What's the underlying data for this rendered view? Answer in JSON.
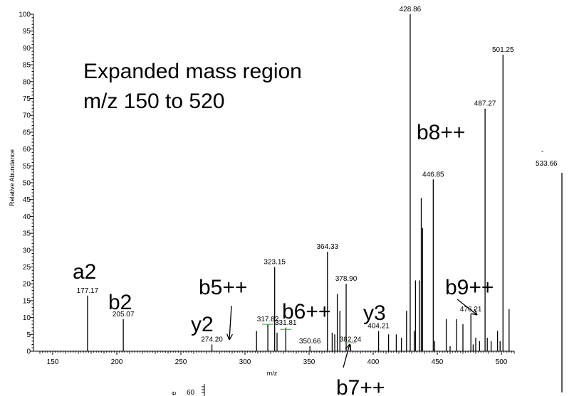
{
  "chart_data": {
    "type": "bar",
    "title": [
      "Expanded mass region",
      "m/z 150 to 520"
    ],
    "xlabel": "m/z",
    "ylabel": "Relative Abundance",
    "xlim": [
      135,
      510
    ],
    "ylim": [
      0,
      100
    ],
    "x_ticks": [
      150,
      200,
      250,
      300,
      350,
      400,
      450,
      500
    ],
    "y_ticks": [
      0,
      5,
      10,
      15,
      20,
      25,
      30,
      35,
      40,
      45,
      50,
      55,
      60,
      65,
      70,
      75,
      80,
      85,
      90,
      95,
      100
    ],
    "peaks": [
      {
        "mz": 177.17,
        "intensity": 16.5,
        "label": "177.17"
      },
      {
        "mz": 205.07,
        "intensity": 9.5,
        "label": "205.07"
      },
      {
        "mz": 274.2,
        "intensity": 2,
        "label": "274.20"
      },
      {
        "mz": 309.0,
        "intensity": 6,
        "label": ""
      },
      {
        "mz": 317.82,
        "intensity": 8,
        "label": "317.82"
      },
      {
        "mz": 323.15,
        "intensity": 25,
        "label": "323.15"
      },
      {
        "mz": 325.0,
        "intensity": 5.5,
        "label": ""
      },
      {
        "mz": 331.81,
        "intensity": 7,
        "label": "331.81"
      },
      {
        "mz": 350.66,
        "intensity": 1.5,
        "label": "350.66"
      },
      {
        "mz": 364.33,
        "intensity": 29.5,
        "label": "364.33"
      },
      {
        "mz": 368.0,
        "intensity": 5.5,
        "label": ""
      },
      {
        "mz": 370.0,
        "intensity": 5,
        "label": ""
      },
      {
        "mz": 372.0,
        "intensity": 17,
        "label": ""
      },
      {
        "mz": 374.0,
        "intensity": 12,
        "label": ""
      },
      {
        "mz": 378.9,
        "intensity": 20,
        "label": "378.90"
      },
      {
        "mz": 382.24,
        "intensity": 2,
        "label": "382.24"
      },
      {
        "mz": 404.21,
        "intensity": 6,
        "label": "404.21"
      },
      {
        "mz": 412.0,
        "intensity": 5,
        "label": ""
      },
      {
        "mz": 418.0,
        "intensity": 5,
        "label": ""
      },
      {
        "mz": 422.0,
        "intensity": 4,
        "label": ""
      },
      {
        "mz": 426.0,
        "intensity": 12,
        "label": ""
      },
      {
        "mz": 428.86,
        "intensity": 100,
        "label": "428.86"
      },
      {
        "mz": 432.0,
        "intensity": 6,
        "label": ""
      },
      {
        "mz": 433.0,
        "intensity": 21,
        "label": ""
      },
      {
        "mz": 436.0,
        "intensity": 21,
        "label": ""
      },
      {
        "mz": 437.5,
        "intensity": 45.5,
        "label": ""
      },
      {
        "mz": 438.5,
        "intensity": 36.5,
        "label": ""
      },
      {
        "mz": 446.85,
        "intensity": 51,
        "label": "446.85"
      },
      {
        "mz": 448.0,
        "intensity": 3,
        "label": ""
      },
      {
        "mz": 457.0,
        "intensity": 9.5,
        "label": ""
      },
      {
        "mz": 460.0,
        "intensity": 1.5,
        "label": ""
      },
      {
        "mz": 465.0,
        "intensity": 9.5,
        "label": ""
      },
      {
        "mz": 470.0,
        "intensity": 8,
        "label": ""
      },
      {
        "mz": 476.21,
        "intensity": 11,
        "label": "476.21"
      },
      {
        "mz": 478.0,
        "intensity": 2,
        "label": ""
      },
      {
        "mz": 480.0,
        "intensity": 4,
        "label": ""
      },
      {
        "mz": 483.0,
        "intensity": 3,
        "label": ""
      },
      {
        "mz": 487.27,
        "intensity": 72,
        "label": "487.27"
      },
      {
        "mz": 489.0,
        "intensity": 4,
        "label": ""
      },
      {
        "mz": 492.0,
        "intensity": 3,
        "label": ""
      },
      {
        "mz": 497.0,
        "intensity": 6,
        "label": ""
      },
      {
        "mz": 499.0,
        "intensity": 3,
        "label": ""
      },
      {
        "mz": 501.25,
        "intensity": 88,
        "label": "501.25"
      },
      {
        "mz": 506.0,
        "intensity": 12.5,
        "label": ""
      }
    ],
    "ion_labels": [
      "a2",
      "b2",
      "y2",
      "b5++",
      "b6++",
      "y3",
      "b7++",
      "b8++",
      "b9++"
    ],
    "side_peak": {
      "label": "533.66",
      "dash": "-"
    },
    "inset_fragment": {
      "tick": "60",
      "letter": "e"
    }
  }
}
